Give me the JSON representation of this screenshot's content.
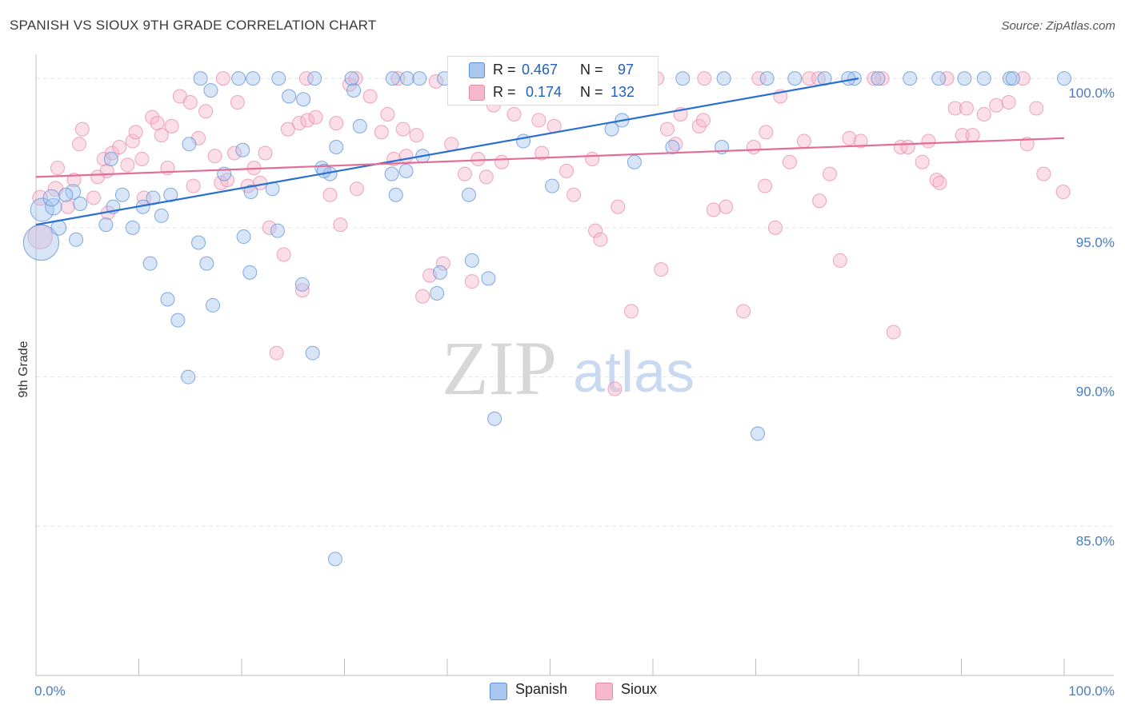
{
  "title": "SPANISH VS SIOUX 9TH GRADE CORRELATION CHART",
  "source": "Source: ZipAtlas.com",
  "watermark": {
    "zip": "ZIP",
    "atlas": "atlas"
  },
  "legend": {
    "row1": {
      "r_label": "R =",
      "r_value": "0.467",
      "n_label": "N =",
      "n_value": "97"
    },
    "row2": {
      "r_label": "R =",
      "r_value": "0.174",
      "n_label": "N =",
      "n_value": "132"
    }
  },
  "bottom_legend": {
    "spanish": "Spanish",
    "sioux": "Sioux"
  },
  "colors": {
    "spanish_fill": "#a9c6ee",
    "spanish_stroke": "#5b8fd6",
    "spanish_line": "#2a6fcf",
    "sioux_fill": "#f6b8cb",
    "sioux_stroke": "#e889a8",
    "sioux_line": "#e26d97",
    "tick_text": "#4a7cc0",
    "grid": "#e2e2e2"
  },
  "chart_data": {
    "type": "scatter",
    "title": "SPANISH VS SIOUX 9TH GRADE CORRELATION CHART",
    "xlabel": "",
    "ylabel": "9th Grade",
    "xlim": [
      0,
      100
    ],
    "ylim": [
      80.0,
      100.7
    ],
    "x_tick_labels": [
      "0.0%",
      "100.0%"
    ],
    "y_ticks": [
      {
        "value": 100,
        "label": "100.0%"
      },
      {
        "value": 95,
        "label": "95.0%"
      },
      {
        "value": 90,
        "label": "90.0%"
      },
      {
        "value": 85,
        "label": "85.0%"
      }
    ],
    "series": [
      {
        "name": "Spanish",
        "r": 0.467,
        "n": 97,
        "trend": {
          "x": [
            0,
            80
          ],
          "y": [
            95.1,
            100.0
          ]
        },
        "points": [
          [
            0.5,
            94.5,
            1.4
          ],
          [
            0.6,
            95.6,
            0.85
          ],
          [
            1.7,
            95.7,
            0.6
          ],
          [
            1.5,
            96.0,
            0.6
          ],
          [
            2.2,
            95.0,
            0.55
          ],
          [
            3.6,
            96.2,
            0.55
          ],
          [
            2.9,
            96.1,
            0.5
          ],
          [
            4.3,
            95.8,
            0.5
          ],
          [
            3.9,
            94.6,
            0.5
          ],
          [
            7.3,
            97.3,
            0.5
          ],
          [
            6.8,
            95.1,
            0.5
          ],
          [
            7.5,
            95.7,
            0.5
          ],
          [
            8.4,
            96.1,
            0.5
          ],
          [
            9.4,
            95.0,
            0.5
          ],
          [
            10.4,
            95.7,
            0.5
          ],
          [
            11.4,
            96.0,
            0.5
          ],
          [
            12.2,
            95.4,
            0.5
          ],
          [
            13.1,
            96.1,
            0.5
          ],
          [
            11.1,
            93.8,
            0.5
          ],
          [
            12.8,
            92.6,
            0.5
          ],
          [
            13.8,
            91.9,
            0.5
          ],
          [
            14.8,
            90.0,
            0.5
          ],
          [
            15.8,
            94.5,
            0.5
          ],
          [
            16.6,
            93.8,
            0.5
          ],
          [
            17.2,
            92.4,
            0.5
          ],
          [
            18.3,
            96.8,
            0.5
          ],
          [
            20.9,
            96.2,
            0.5
          ],
          [
            20.2,
            94.7,
            0.5
          ],
          [
            20.8,
            93.5,
            0.5
          ],
          [
            20.1,
            97.6,
            0.5
          ],
          [
            23.0,
            96.3,
            0.5
          ],
          [
            23.5,
            94.9,
            0.5
          ],
          [
            25.9,
            93.1,
            0.5
          ],
          [
            26.9,
            90.8,
            0.5
          ],
          [
            27.8,
            97.0,
            0.5
          ],
          [
            28.6,
            96.8,
            0.5
          ],
          [
            29.2,
            97.7,
            0.5
          ],
          [
            29.1,
            83.9,
            0.5
          ],
          [
            30.9,
            99.6,
            0.5
          ],
          [
            31.5,
            98.4,
            0.5
          ],
          [
            34.6,
            96.8,
            0.5
          ],
          [
            35.0,
            96.1,
            0.5
          ],
          [
            36.0,
            96.9,
            0.5
          ],
          [
            37.6,
            97.4,
            0.5
          ],
          [
            39.0,
            92.8,
            0.5
          ],
          [
            39.3,
            93.5,
            0.5
          ],
          [
            42.1,
            96.1,
            0.5
          ],
          [
            42.4,
            93.9,
            0.5
          ],
          [
            44.0,
            93.3,
            0.5
          ],
          [
            44.6,
            88.6,
            0.5
          ],
          [
            47.4,
            97.9,
            0.5
          ],
          [
            50.2,
            96.4,
            0.5
          ],
          [
            57.0,
            98.6,
            0.5
          ],
          [
            58.2,
            97.2,
            0.5
          ],
          [
            61.9,
            97.7,
            0.5
          ],
          [
            66.7,
            97.7,
            0.5
          ],
          [
            70.2,
            88.1,
            0.5
          ],
          [
            14.9,
            97.8,
            0.5
          ],
          [
            17.0,
            99.6,
            0.5
          ],
          [
            24.6,
            99.4,
            0.5
          ],
          [
            26.0,
            99.3,
            0.5
          ],
          [
            16.0,
            100.0,
            0.5
          ],
          [
            19.7,
            100.0,
            0.5
          ],
          [
            21.1,
            100.0,
            0.5
          ],
          [
            23.6,
            100.0,
            0.5
          ],
          [
            27.1,
            100.0,
            0.5
          ],
          [
            30.7,
            100.0,
            0.5
          ],
          [
            34.7,
            100.0,
            0.5
          ],
          [
            36.1,
            100.0,
            0.5
          ],
          [
            37.3,
            100.0,
            0.5
          ],
          [
            39.7,
            100.0,
            0.5
          ],
          [
            41.6,
            100.0,
            0.5
          ],
          [
            43.2,
            100.0,
            0.5
          ],
          [
            44.0,
            100.0,
            0.5
          ],
          [
            46.6,
            100.0,
            0.5
          ],
          [
            49.9,
            100.0,
            0.5
          ],
          [
            53.6,
            100.0,
            0.5
          ],
          [
            55.4,
            100.0,
            0.5
          ],
          [
            56.6,
            100.0,
            0.5
          ],
          [
            59.4,
            100.0,
            0.5
          ],
          [
            62.9,
            100.0,
            0.5
          ],
          [
            66.9,
            100.0,
            0.5
          ],
          [
            71.1,
            100.0,
            0.5
          ],
          [
            73.8,
            100.0,
            0.5
          ],
          [
            76.7,
            100.0,
            0.5
          ],
          [
            79.6,
            100.0,
            0.5
          ],
          [
            81.9,
            100.0,
            0.5
          ],
          [
            85.0,
            100.0,
            0.5
          ],
          [
            87.8,
            100.0,
            0.5
          ],
          [
            90.3,
            100.0,
            0.5
          ],
          [
            92.2,
            100.0,
            0.5
          ],
          [
            94.7,
            100.0,
            0.5
          ],
          [
            95.0,
            100.0,
            0.5
          ],
          [
            100.0,
            100.0,
            0.5
          ],
          [
            28.0,
            96.9,
            0.5
          ],
          [
            56.0,
            98.3,
            0.5
          ],
          [
            79.0,
            100.0,
            0.5
          ]
        ]
      },
      {
        "name": "Sioux",
        "r": 0.174,
        "n": 132,
        "trend": {
          "x": [
            0,
            100
          ],
          "y": [
            96.7,
            98.0
          ]
        },
        "points": [
          [
            0.4,
            94.7,
            0.9
          ],
          [
            0.4,
            96.0,
            0.55
          ],
          [
            1.9,
            96.3,
            0.55
          ],
          [
            2.1,
            97.0,
            0.5
          ],
          [
            3.1,
            95.7,
            0.5
          ],
          [
            3.7,
            96.6,
            0.5
          ],
          [
            4.2,
            97.8,
            0.5
          ],
          [
            4.5,
            98.3,
            0.5
          ],
          [
            5.6,
            96.0,
            0.5
          ],
          [
            6.0,
            96.7,
            0.5
          ],
          [
            6.6,
            97.3,
            0.5
          ],
          [
            6.9,
            96.9,
            0.5
          ],
          [
            7.0,
            95.5,
            0.5
          ],
          [
            7.4,
            97.5,
            0.5
          ],
          [
            8.1,
            97.7,
            0.5
          ],
          [
            8.9,
            97.1,
            0.5
          ],
          [
            9.4,
            97.9,
            0.5
          ],
          [
            9.7,
            98.2,
            0.5
          ],
          [
            10.3,
            97.3,
            0.5
          ],
          [
            10.5,
            96.0,
            0.5
          ],
          [
            11.3,
            98.7,
            0.5
          ],
          [
            11.8,
            98.5,
            0.5
          ],
          [
            12.2,
            98.1,
            0.5
          ],
          [
            12.8,
            97.0,
            0.5
          ],
          [
            13.2,
            98.4,
            0.5
          ],
          [
            14.0,
            99.4,
            0.5
          ],
          [
            15.0,
            99.2,
            0.5
          ],
          [
            15.3,
            96.4,
            0.5
          ],
          [
            15.8,
            98.0,
            0.5
          ],
          [
            16.5,
            98.9,
            0.5
          ],
          [
            17.4,
            97.4,
            0.5
          ],
          [
            18.0,
            96.5,
            0.5
          ],
          [
            18.6,
            96.6,
            0.5
          ],
          [
            19.3,
            97.5,
            0.5
          ],
          [
            19.6,
            99.2,
            0.5
          ],
          [
            20.6,
            96.4,
            0.5
          ],
          [
            21.2,
            97.0,
            0.5
          ],
          [
            21.8,
            96.5,
            0.5
          ],
          [
            22.3,
            97.5,
            0.5
          ],
          [
            22.7,
            95.0,
            0.5
          ],
          [
            23.4,
            90.8,
            0.5
          ],
          [
            24.1,
            94.1,
            0.5
          ],
          [
            24.5,
            98.3,
            0.5
          ],
          [
            25.6,
            98.5,
            0.5
          ],
          [
            25.9,
            92.9,
            0.5
          ],
          [
            26.4,
            98.6,
            0.5
          ],
          [
            27.2,
            98.7,
            0.5
          ],
          [
            28.6,
            96.1,
            0.5
          ],
          [
            29.2,
            98.5,
            0.5
          ],
          [
            29.6,
            95.1,
            0.5
          ],
          [
            30.5,
            99.8,
            0.5
          ],
          [
            31.2,
            96.3,
            0.5
          ],
          [
            32.5,
            99.4,
            0.5
          ],
          [
            33.6,
            98.2,
            0.5
          ],
          [
            34.2,
            98.8,
            0.5
          ],
          [
            34.8,
            97.3,
            0.5
          ],
          [
            35.7,
            98.3,
            0.5
          ],
          [
            36.0,
            97.4,
            0.5
          ],
          [
            37.0,
            98.1,
            0.5
          ],
          [
            37.6,
            92.7,
            0.5
          ],
          [
            38.3,
            93.4,
            0.5
          ],
          [
            38.9,
            99.9,
            0.5
          ],
          [
            39.6,
            93.8,
            0.5
          ],
          [
            40.4,
            97.8,
            0.5
          ],
          [
            41.7,
            96.8,
            0.5
          ],
          [
            42.4,
            93.2,
            0.5
          ],
          [
            43.0,
            97.3,
            0.5
          ],
          [
            43.8,
            96.7,
            0.5
          ],
          [
            44.5,
            99.1,
            0.5
          ],
          [
            45.3,
            97.2,
            0.5
          ],
          [
            46.5,
            98.8,
            0.5
          ],
          [
            48.9,
            98.6,
            0.5
          ],
          [
            49.2,
            97.5,
            0.5
          ],
          [
            50.4,
            98.4,
            0.5
          ],
          [
            51.6,
            96.9,
            0.5
          ],
          [
            52.3,
            96.1,
            0.5
          ],
          [
            54.1,
            97.3,
            0.5
          ],
          [
            54.4,
            94.9,
            0.5
          ],
          [
            54.9,
            94.6,
            0.5
          ],
          [
            56.3,
            89.6,
            0.5
          ],
          [
            56.6,
            95.7,
            0.5
          ],
          [
            57.9,
            92.2,
            0.5
          ],
          [
            59.6,
            100.0,
            0.5
          ],
          [
            60.8,
            93.6,
            0.5
          ],
          [
            61.4,
            98.3,
            0.5
          ],
          [
            62.2,
            97.8,
            0.5
          ],
          [
            62.7,
            98.8,
            0.5
          ],
          [
            64.5,
            98.4,
            0.5
          ],
          [
            64.9,
            98.6,
            0.5
          ],
          [
            65.9,
            95.6,
            0.5
          ],
          [
            67.1,
            95.7,
            0.5
          ],
          [
            68.8,
            92.2,
            0.5
          ],
          [
            69.8,
            97.7,
            0.5
          ],
          [
            70.9,
            96.4,
            0.5
          ],
          [
            71.0,
            98.2,
            0.5
          ],
          [
            71.9,
            95.0,
            0.5
          ],
          [
            72.4,
            99.4,
            0.5
          ],
          [
            73.3,
            97.2,
            0.5
          ],
          [
            74.7,
            97.9,
            0.5
          ],
          [
            75.2,
            100.0,
            0.5
          ],
          [
            76.2,
            95.9,
            0.5
          ],
          [
            77.2,
            96.8,
            0.5
          ],
          [
            78.2,
            93.9,
            0.5
          ],
          [
            79.1,
            98.0,
            0.5
          ],
          [
            80.2,
            97.9,
            0.5
          ],
          [
            82.3,
            100.0,
            0.5
          ],
          [
            83.4,
            91.5,
            0.5
          ],
          [
            84.1,
            97.7,
            0.5
          ],
          [
            84.8,
            97.7,
            0.5
          ],
          [
            86.2,
            97.2,
            0.5
          ],
          [
            86.8,
            97.9,
            0.5
          ],
          [
            87.6,
            96.6,
            0.5
          ],
          [
            87.9,
            96.5,
            0.5
          ],
          [
            88.6,
            100.0,
            0.5
          ],
          [
            89.4,
            99.0,
            0.5
          ],
          [
            90.1,
            98.1,
            0.5
          ],
          [
            90.5,
            99.0,
            0.5
          ],
          [
            91.1,
            98.1,
            0.5
          ],
          [
            92.2,
            98.8,
            0.5
          ],
          [
            93.4,
            99.1,
            0.5
          ],
          [
            94.6,
            99.2,
            0.5
          ],
          [
            96.4,
            97.8,
            0.5
          ],
          [
            97.3,
            99.0,
            0.5
          ],
          [
            98.0,
            96.8,
            0.5
          ],
          [
            99.9,
            96.2,
            0.5
          ],
          [
            96.0,
            100.0,
            0.5
          ],
          [
            18.2,
            100.0,
            0.5
          ],
          [
            26.3,
            100.0,
            0.5
          ],
          [
            31.1,
            100.0,
            0.5
          ],
          [
            35.2,
            100.0,
            0.5
          ],
          [
            40.9,
            100.0,
            0.5
          ],
          [
            47.2,
            100.0,
            0.5
          ],
          [
            53.7,
            100.0,
            0.5
          ],
          [
            60.4,
            100.0,
            0.5
          ],
          [
            65.0,
            100.0,
            0.5
          ],
          [
            70.3,
            100.0,
            0.5
          ],
          [
            76.1,
            100.0,
            0.5
          ],
          [
            81.5,
            100.0,
            0.5
          ]
        ]
      }
    ]
  }
}
